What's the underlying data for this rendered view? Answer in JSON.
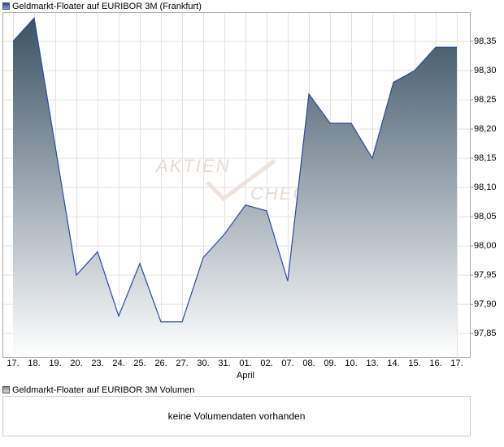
{
  "chart_data": {
    "type": "area",
    "title": "Geldmarkt-Floater auf EURIBOR 3M (Frankfurt)",
    "watermark": [
      "AKTIEN",
      "CHECK"
    ],
    "categories": [
      "17.",
      "18.",
      "19.",
      "20.",
      "23.",
      "24.",
      "25.",
      "26.",
      "27.",
      "30.",
      "31.",
      "01.",
      "02.",
      "07.",
      "08.",
      "09.",
      "10.",
      "13.",
      "14.",
      "15.",
      "16.",
      "17."
    ],
    "x_annotation": {
      "label": "April",
      "category_index": 11
    },
    "series": [
      {
        "name": "Geldmarkt-Floater auf EURIBOR 3M (Frankfurt)",
        "color": "#2b4d9e",
        "values": [
          98.35,
          98.39,
          98.17,
          97.95,
          97.99,
          97.88,
          97.97,
          97.87,
          97.87,
          97.98,
          98.02,
          98.07,
          98.06,
          97.94,
          98.26,
          98.21,
          98.21,
          98.15,
          98.28,
          98.3,
          98.34,
          98.34
        ]
      }
    ],
    "ylim": [
      97.81,
      98.4
    ],
    "yticks": [
      {
        "value": 97.85,
        "label": "97,85"
      },
      {
        "value": 97.9,
        "label": "97,90"
      },
      {
        "value": 97.95,
        "label": "97,95"
      },
      {
        "value": 98.0,
        "label": "98,00"
      },
      {
        "value": 98.05,
        "label": "98,05"
      },
      {
        "value": 98.1,
        "label": "98,10"
      },
      {
        "value": 98.15,
        "label": "98,15"
      },
      {
        "value": 98.2,
        "label": "98,20"
      },
      {
        "value": 98.25,
        "label": "98,25"
      },
      {
        "value": 98.3,
        "label": "98,30"
      },
      {
        "value": 98.35,
        "label": "98,35"
      }
    ],
    "grid": true,
    "volume": {
      "title": "Geldmarkt-Floater auf EURIBOR 3M Volumen",
      "message": "keine Volumendaten vorhanden"
    }
  }
}
